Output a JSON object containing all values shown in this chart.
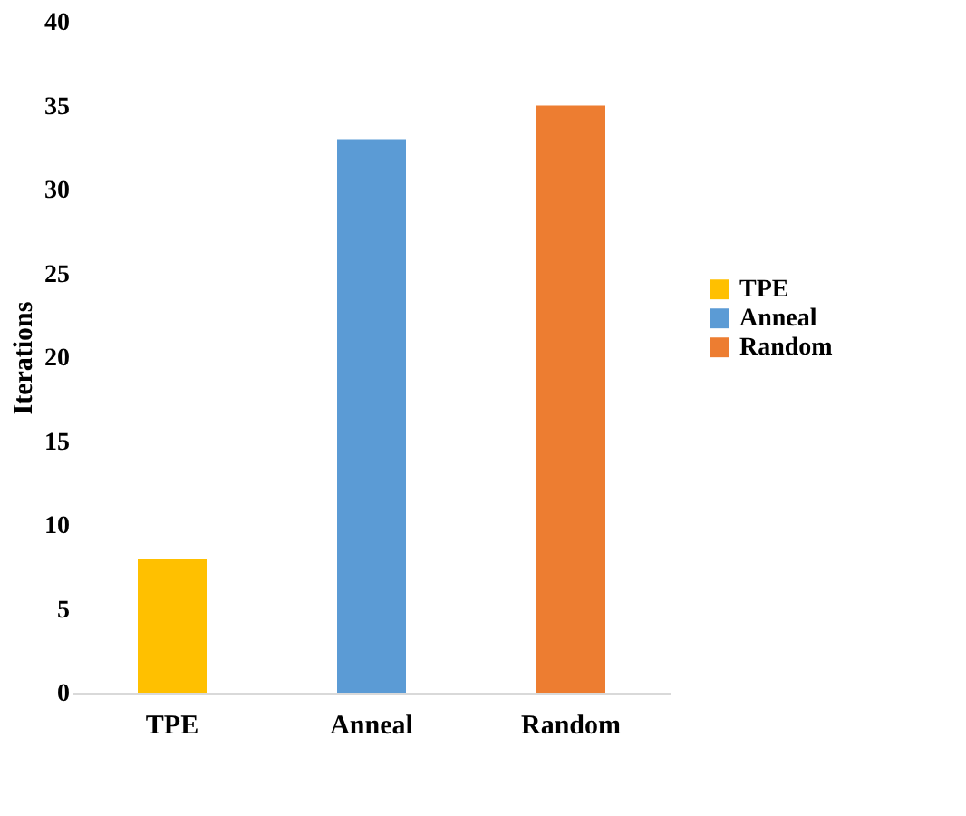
{
  "chart_data": {
    "type": "bar",
    "ylabel": "Iterations",
    "categories": [
      "TPE",
      "Anneal",
      "Random"
    ],
    "series": [
      {
        "name": "TPE",
        "color": "#ffc000",
        "values": [
          8,
          null,
          null
        ]
      },
      {
        "name": "Anneal",
        "color": "#5b9bd5",
        "values": [
          null,
          33,
          null
        ]
      },
      {
        "name": "Random",
        "color": "#ed7d31",
        "values": [
          null,
          null,
          35
        ]
      }
    ],
    "ylim": [
      0,
      40
    ],
    "yticks": [
      0,
      5,
      10,
      15,
      20,
      25,
      30,
      35,
      40
    ],
    "grid": false,
    "legend": "right"
  }
}
